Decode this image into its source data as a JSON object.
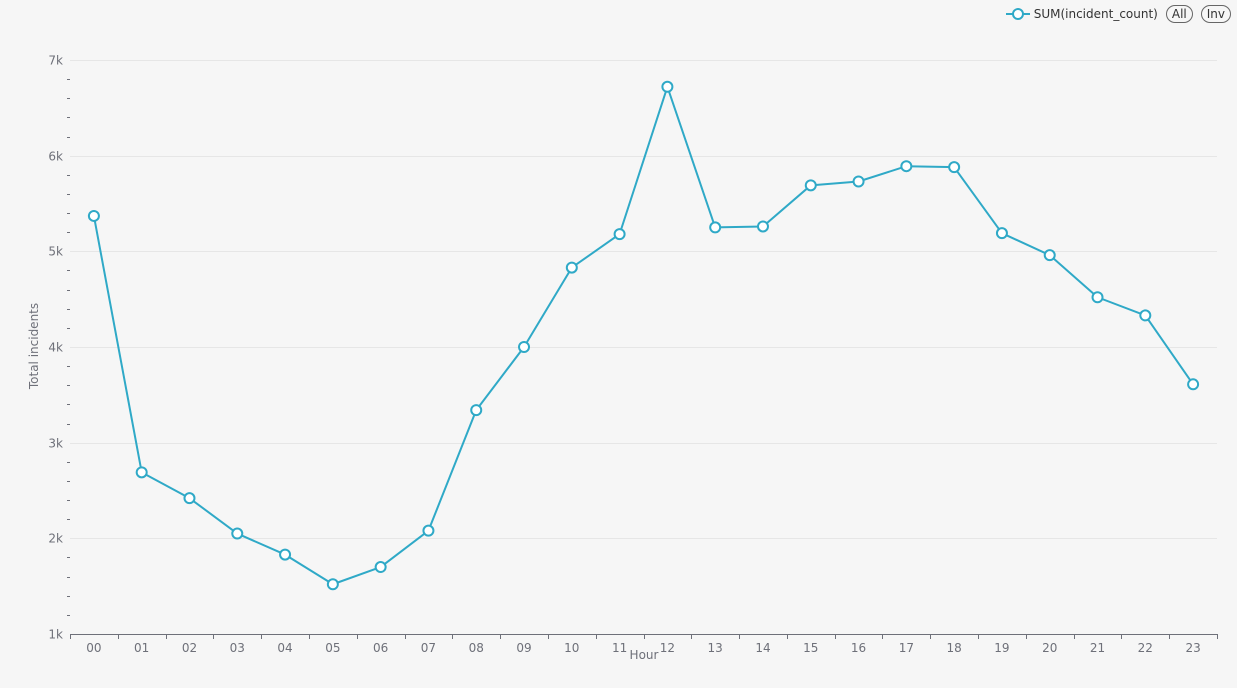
{
  "legend": {
    "series_label": "SUM(incident_count)",
    "all_label": "All",
    "inv_label": "Inv"
  },
  "chart_data": {
    "type": "line",
    "xlabel": "Hour",
    "ylabel": "Total incidents",
    "categories": [
      "00",
      "01",
      "02",
      "03",
      "04",
      "05",
      "06",
      "07",
      "08",
      "09",
      "10",
      "11",
      "12",
      "13",
      "14",
      "15",
      "16",
      "17",
      "18",
      "19",
      "20",
      "21",
      "22",
      "23"
    ],
    "ylim": [
      1000,
      7000
    ],
    "y_ticks": [
      1000,
      2000,
      3000,
      4000,
      5000,
      6000,
      7000
    ],
    "y_tick_labels": [
      "1k",
      "2k",
      "3k",
      "4k",
      "5k",
      "6k",
      "7k"
    ],
    "grid": true,
    "legend_position": "top-right",
    "series": [
      {
        "name": "SUM(incident_count)",
        "color": "#2fa9c7",
        "values": [
          5370,
          2690,
          2420,
          2050,
          1830,
          1520,
          1700,
          2080,
          3340,
          4000,
          4830,
          5180,
          6720,
          5250,
          5260,
          5690,
          5730,
          5890,
          5880,
          5190,
          4960,
          4520,
          4330,
          3610
        ]
      }
    ]
  }
}
